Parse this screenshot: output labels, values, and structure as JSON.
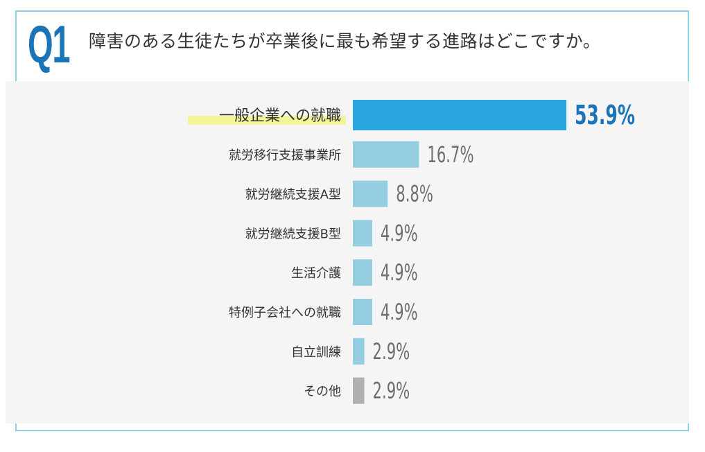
{
  "question": {
    "label": "Q1",
    "text": "障害のある生徒たちが卒業後に最も希望する進路はどこですか。"
  },
  "colors": {
    "accent": "#29a6df",
    "accent_text": "#1b73b8",
    "bar": "#95cde1",
    "other_bar": "#b0b0b0",
    "value_text": "#6e6e6e",
    "highlight": "#f3f39a",
    "border": "#8fd0e6",
    "panel": "#f5f5f5"
  },
  "chart_data": {
    "type": "bar",
    "orientation": "horizontal",
    "categories": [
      "一般企業への就職",
      "就労移行支援事業所",
      "就労継続支援A型",
      "就労継続支援B型",
      "生活介護",
      "特例子会社への就職",
      "自立訓練",
      "その他"
    ],
    "values": [
      53.9,
      16.7,
      8.8,
      4.9,
      4.9,
      4.9,
      2.9,
      2.9
    ],
    "value_labels": [
      "53.9%",
      "16.7%",
      "8.8%",
      "4.9%",
      "4.9%",
      "4.9%",
      "2.9%",
      "2.9%"
    ],
    "highlight_index": 0,
    "other_index": 7,
    "unit": "%"
  }
}
